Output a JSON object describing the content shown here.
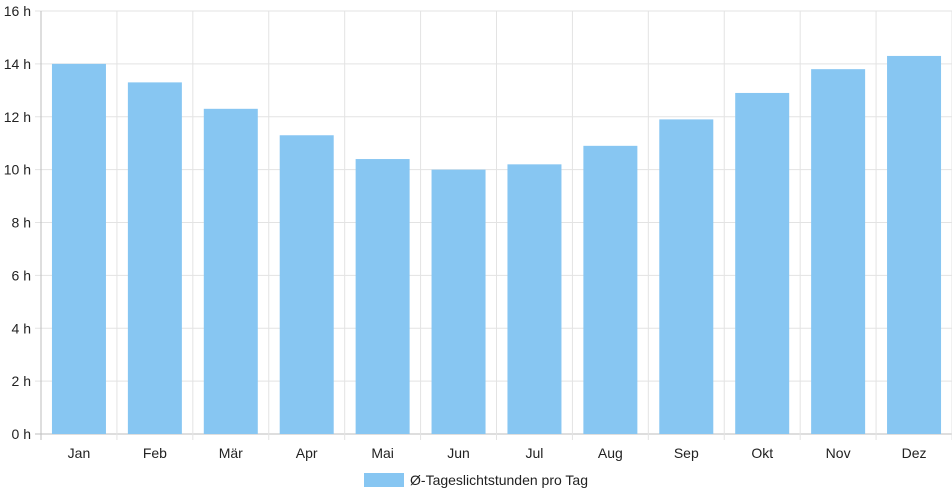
{
  "chart_data": {
    "type": "bar",
    "categories": [
      "Jan",
      "Feb",
      "Mär",
      "Apr",
      "Mai",
      "Jun",
      "Jul",
      "Aug",
      "Sep",
      "Okt",
      "Nov",
      "Dez"
    ],
    "series": [
      {
        "name": "Ø-Tageslichtstunden pro Tag",
        "values": [
          14.0,
          13.3,
          12.3,
          11.3,
          10.4,
          10.0,
          10.2,
          10.9,
          11.9,
          12.9,
          13.8,
          14.3
        ],
        "color": "#87c6f2"
      }
    ],
    "ylim": [
      0,
      16
    ],
    "yticks": [
      0,
      2,
      4,
      6,
      8,
      10,
      12,
      14,
      16
    ],
    "y_tick_suffix": " h",
    "grid": true,
    "legend_position": "bottom"
  }
}
